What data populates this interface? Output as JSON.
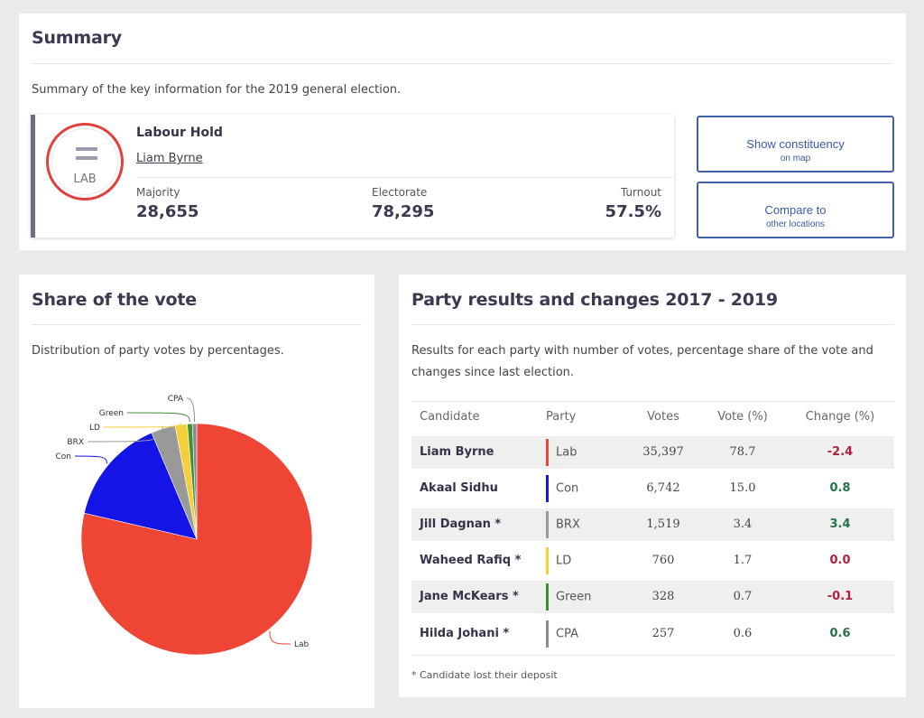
{
  "summary": {
    "title": "Summary",
    "description": "Summary of the key information for the 2019 general election.",
    "result": {
      "party_abbr": "LAB",
      "hold_text": "Labour Hold",
      "winner": "Liam Byrne",
      "majority_label": "Majority",
      "majority_value": "28,655",
      "electorate_label": "Electorate",
      "electorate_value": "78,295",
      "turnout_label": "Turnout",
      "turnout_value": "57.5%"
    },
    "buttons": {
      "show_main": "Show constituency",
      "show_sub": "on map",
      "compare_main": "Compare to",
      "compare_sub": "other locations"
    }
  },
  "share": {
    "title": "Share of the vote",
    "description": "Distribution of party votes by percentages."
  },
  "chart_data": {
    "type": "pie",
    "title": "",
    "categories": [
      "Lab",
      "Con",
      "BRX",
      "LD",
      "Green",
      "CPA"
    ],
    "values": [
      78.7,
      15.0,
      3.4,
      1.7,
      0.7,
      0.6
    ],
    "colors": [
      "#ef4535",
      "#1414e6",
      "#999999",
      "#f5cf3a",
      "#3f8f35",
      "#8c8c8c"
    ]
  },
  "results": {
    "title": "Party results and changes 2017 - 2019",
    "description": "Results for each party with number of votes, percentage share of the vote and changes since last election.",
    "columns": [
      "Candidate",
      "Party",
      "Votes",
      "Vote (%)",
      "Change (%)"
    ],
    "rows": [
      {
        "candidate": "Liam Byrne",
        "party": "Lab",
        "votes": "35,397",
        "vote_pct": "78.7",
        "change": "-2.4",
        "color": "#ef4535",
        "sign": "neg"
      },
      {
        "candidate": "Akaal Sidhu",
        "party": "Con",
        "votes": "6,742",
        "vote_pct": "15.0",
        "change": "0.8",
        "color": "#1414e6",
        "sign": "pos"
      },
      {
        "candidate": "Jill Dagnan *",
        "party": "BRX",
        "votes": "1,519",
        "vote_pct": "3.4",
        "change": "3.4",
        "color": "#999999",
        "sign": "pos"
      },
      {
        "candidate": "Waheed Rafiq *",
        "party": "LD",
        "votes": "760",
        "vote_pct": "1.7",
        "change": "0.0",
        "color": "#f5cf3a",
        "sign": "zero"
      },
      {
        "candidate": "Jane McKears *",
        "party": "Green",
        "votes": "328",
        "vote_pct": "0.7",
        "change": "-0.1",
        "color": "#3f8f35",
        "sign": "neg"
      },
      {
        "candidate": "Hilda Johani *",
        "party": "CPA",
        "votes": "257",
        "vote_pct": "0.6",
        "change": "0.6",
        "color": "#8c8c8c",
        "sign": "pos"
      }
    ],
    "footnote": "* Candidate lost their deposit"
  }
}
